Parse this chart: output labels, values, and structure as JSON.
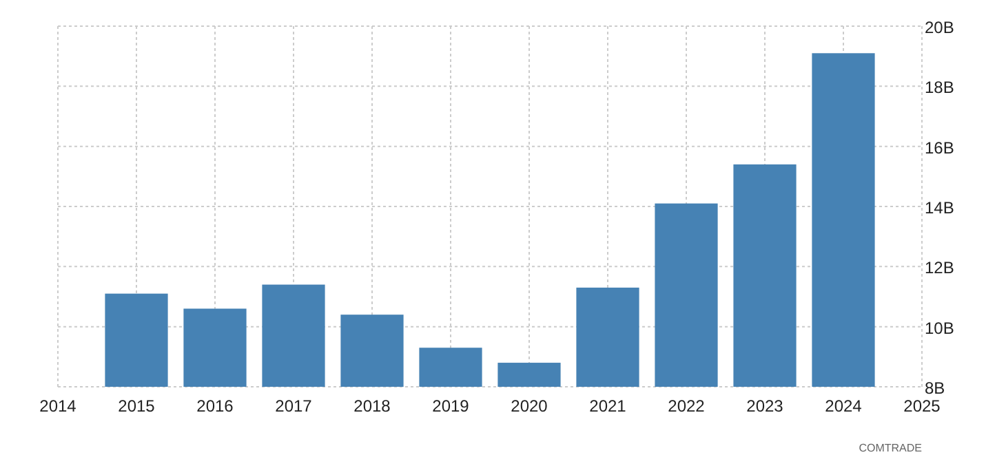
{
  "chart_data": {
    "type": "bar",
    "x": [
      2015,
      2016,
      2017,
      2018,
      2019,
      2020,
      2021,
      2022,
      2023,
      2024
    ],
    "values": [
      11.1,
      10.6,
      11.4,
      10.4,
      9.3,
      8.8,
      11.3,
      14.1,
      15.4,
      19.1
    ],
    "color": "#4682b4",
    "xlim": [
      2014,
      2025
    ],
    "xticks": [
      2014,
      2015,
      2016,
      2017,
      2018,
      2019,
      2020,
      2021,
      2022,
      2023,
      2024,
      2025
    ],
    "ylim": [
      8,
      20
    ],
    "yticks": [
      {
        "value": 8,
        "label": "8B"
      },
      {
        "value": 10,
        "label": "10B"
      },
      {
        "value": 12,
        "label": "12B"
      },
      {
        "value": 14,
        "label": "14B"
      },
      {
        "value": 16,
        "label": "16B"
      },
      {
        "value": 18,
        "label": "18B"
      },
      {
        "value": 20,
        "label": "20B"
      }
    ],
    "grid": true,
    "annotations": [
      "COMTRADE"
    ]
  }
}
